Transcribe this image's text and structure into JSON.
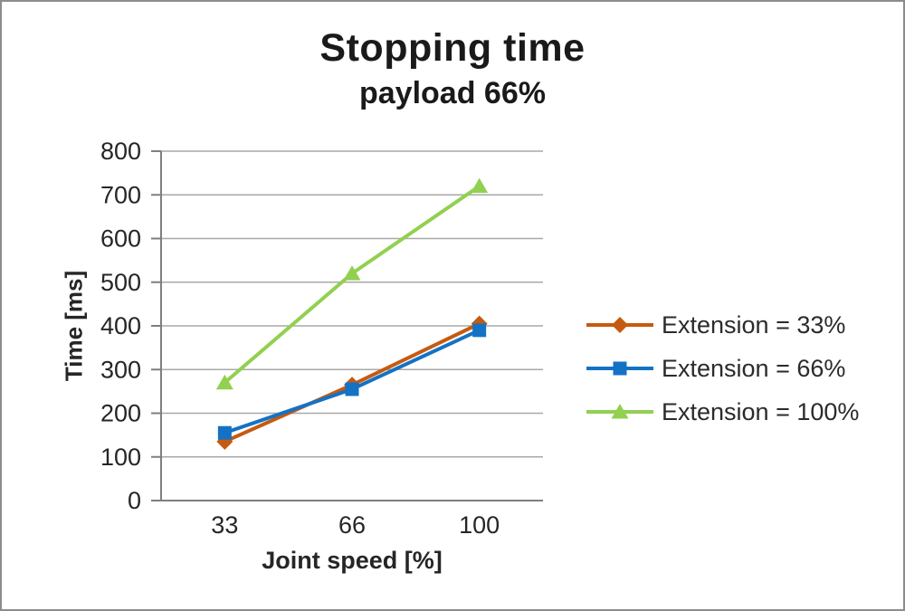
{
  "chart_data": {
    "type": "line",
    "title": "Stopping time",
    "subtitle": "payload 66%",
    "xlabel": "Joint speed [%]",
    "ylabel": "Time [ms]",
    "x_categories": [
      "33",
      "66",
      "100"
    ],
    "ylim": [
      0,
      800
    ],
    "y_ticks": [
      0,
      100,
      200,
      300,
      400,
      500,
      600,
      700,
      800
    ],
    "grid": true,
    "legend_position": "right",
    "series": [
      {
        "name": "Extension = 33%",
        "marker": "diamond",
        "color": "#C55A11",
        "values": [
          135,
          265,
          405
        ]
      },
      {
        "name": "Extension = 66%",
        "marker": "square",
        "color": "#1472C4",
        "values": [
          155,
          255,
          390
        ]
      },
      {
        "name": "Extension = 100%",
        "marker": "triangle",
        "color": "#92D050",
        "values": [
          270,
          520,
          720
        ]
      }
    ]
  },
  "colors": {
    "background": "#FFFFFF",
    "border": "#8C8C8C",
    "gridline": "#A8A8A8",
    "axis": "#7F7F7F",
    "tick_label": "#262626",
    "text": "#262626"
  }
}
